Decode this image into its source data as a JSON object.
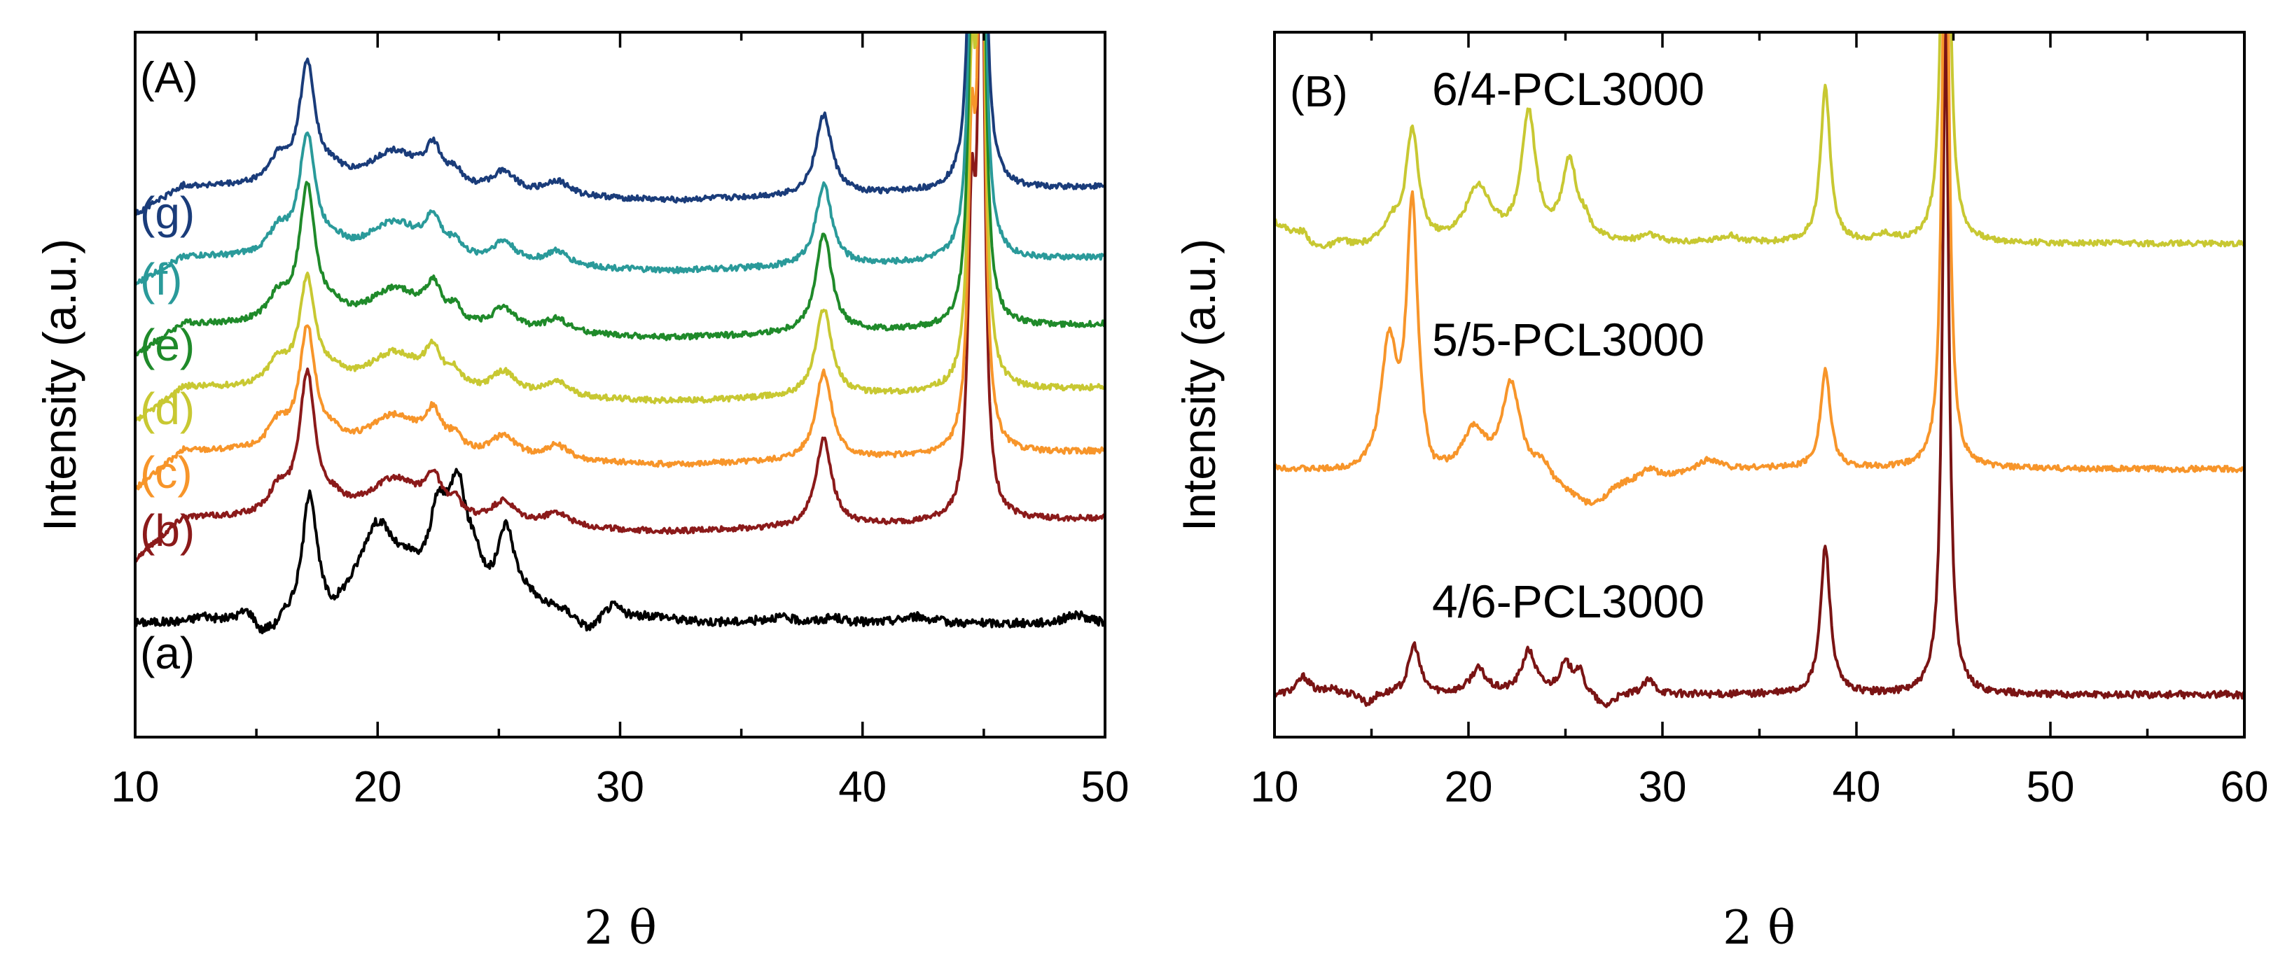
{
  "figure": {
    "panels": [
      {
        "label": "(A)",
        "xlabel_main": "2",
        "xlabel_symbol": "θ",
        "ylabel": "Intensity (a.u.)"
      },
      {
        "label": "(B)",
        "xlabel_main": "2",
        "xlabel_symbol": "θ",
        "ylabel": "Intensity (a.u.)"
      }
    ]
  },
  "chart_data": [
    {
      "type": "line",
      "title": "(A)",
      "xlabel": "2 θ",
      "ylabel": "Intensity (a.u.)",
      "xlim": [
        10,
        50
      ],
      "ylim": [
        0,
        100
      ],
      "xticks": [
        10,
        20,
        30,
        40,
        50
      ],
      "yticks_shown": false,
      "series": [
        {
          "name": "(a)",
          "color": "#000000",
          "baseline": 16,
          "noise": 0.6,
          "slope": [
            [
              10,
              0
            ],
            [
              30,
              0
            ],
            [
              50,
              0
            ]
          ],
          "peaks": [
            [
              12.8,
              0.8,
              0.4
            ],
            [
              14.6,
              1.5,
              0.4
            ],
            [
              15.2,
              -2.0,
              0.3
            ],
            [
              15.7,
              -1.5,
              0.3
            ],
            [
              17.2,
              17.5,
              0.35
            ],
            [
              18.1,
              -1.5,
              0.4
            ],
            [
              20.0,
              13,
              1.0
            ],
            [
              21.3,
              3,
              0.6
            ],
            [
              22.5,
              12,
              0.5
            ],
            [
              23.3,
              15.5,
              0.45
            ],
            [
              24.0,
              5,
              0.4
            ],
            [
              25.3,
              11.5,
              0.45
            ],
            [
              26.2,
              2,
              0.6
            ],
            [
              27.5,
              1.2,
              0.8
            ],
            [
              28.7,
              -2,
              0.5
            ],
            [
              29.7,
              2.3,
              0.5
            ],
            [
              31.5,
              0.8,
              0.8
            ],
            [
              36.5,
              0.8,
              0.8
            ],
            [
              38.8,
              0.7,
              0.5
            ],
            [
              42.2,
              1,
              0.8
            ],
            [
              48.8,
              1.3,
              0.6
            ]
          ]
        },
        {
          "name": "(b)",
          "color": "#8b1a1a",
          "baseline": 31,
          "noise": 0.4,
          "slope": [
            [
              10,
              -6
            ],
            [
              12,
              0
            ],
            [
              32,
              -2
            ],
            [
              50,
              0
            ]
          ],
          "peaks": [
            [
              15.9,
              3.5,
              0.5
            ],
            [
              17.1,
              20,
              0.4
            ],
            [
              18.2,
              1.5,
              0.5
            ],
            [
              20.7,
              6,
              1.4
            ],
            [
              22.3,
              5,
              0.4
            ],
            [
              23.2,
              2,
              0.3
            ],
            [
              25.2,
              3,
              0.6
            ],
            [
              27.4,
              2,
              0.6
            ],
            [
              38.4,
              12.5,
              0.4
            ],
            [
              44.5,
              40,
              0.18
            ],
            [
              44.9,
              95,
              0.15
            ]
          ]
        },
        {
          "name": "(c)",
          "color": "#f7952a",
          "baseline": 40.5,
          "noise": 0.4,
          "slope": [
            [
              10,
              -5.5
            ],
            [
              12,
              0
            ],
            [
              32,
              -2
            ],
            [
              50,
              0
            ]
          ],
          "peaks": [
            [
              15.9,
              3.5,
              0.5
            ],
            [
              17.1,
              17,
              0.4
            ],
            [
              18.2,
              1.5,
              0.5
            ],
            [
              20.7,
              5.5,
              1.4
            ],
            [
              22.3,
              4.8,
              0.4
            ],
            [
              23.2,
              2,
              0.3
            ],
            [
              25.2,
              3,
              0.6
            ],
            [
              27.4,
              2,
              0.6
            ],
            [
              38.4,
              12.5,
              0.4
            ],
            [
              44.5,
              40,
              0.18
            ],
            [
              44.9,
              95,
              0.15
            ]
          ]
        },
        {
          "name": "(d)",
          "color": "#c8c832",
          "baseline": 49.5,
          "noise": 0.4,
          "slope": [
            [
              10,
              -5
            ],
            [
              12,
              0
            ],
            [
              32,
              -2
            ],
            [
              50,
              0
            ]
          ],
          "peaks": [
            [
              15.9,
              3.5,
              0.5
            ],
            [
              17.1,
              15,
              0.4
            ],
            [
              18.2,
              1.5,
              0.5
            ],
            [
              20.7,
              5.5,
              1.4
            ],
            [
              22.3,
              4.8,
              0.4
            ],
            [
              23.2,
              2,
              0.3
            ],
            [
              25.2,
              3,
              0.6
            ],
            [
              27.4,
              2,
              0.6
            ],
            [
              38.4,
              12.5,
              0.4
            ],
            [
              44.5,
              40,
              0.18
            ],
            [
              44.9,
              95,
              0.15
            ]
          ]
        },
        {
          "name": "(e)",
          "color": "#1f8a2a",
          "baseline": 58.5,
          "noise": 0.4,
          "slope": [
            [
              10,
              -4.5
            ],
            [
              12,
              0
            ],
            [
              32,
              -2
            ],
            [
              50,
              0
            ]
          ],
          "peaks": [
            [
              15.9,
              3.5,
              0.5
            ],
            [
              17.1,
              19,
              0.4
            ],
            [
              18.2,
              1.5,
              0.5
            ],
            [
              20.7,
              5.5,
              1.4
            ],
            [
              22.3,
              4.8,
              0.4
            ],
            [
              23.2,
              2,
              0.3
            ],
            [
              25.2,
              3,
              0.6
            ],
            [
              27.4,
              2,
              0.6
            ],
            [
              38.4,
              14,
              0.4
            ],
            [
              44.5,
              40,
              0.18
            ],
            [
              44.9,
              95,
              0.15
            ]
          ]
        },
        {
          "name": "(f)",
          "color": "#2a9a9a",
          "baseline": 68,
          "noise": 0.4,
          "slope": [
            [
              10,
              -4
            ],
            [
              12,
              0
            ],
            [
              32,
              -2
            ],
            [
              50,
              0
            ]
          ],
          "peaks": [
            [
              15.9,
              3.5,
              0.5
            ],
            [
              17.1,
              17,
              0.4
            ],
            [
              18.2,
              1.5,
              0.5
            ],
            [
              20.7,
              5.5,
              1.4
            ],
            [
              22.3,
              4.8,
              0.4
            ],
            [
              23.2,
              2,
              0.3
            ],
            [
              25.2,
              3,
              0.6
            ],
            [
              27.4,
              2,
              0.6
            ],
            [
              38.4,
              11.5,
              0.4
            ],
            [
              44.5,
              40,
              0.18
            ],
            [
              44.9,
              95,
              0.15
            ]
          ]
        },
        {
          "name": "(g)",
          "color": "#1a3c7a",
          "baseline": 78,
          "noise": 0.4,
          "slope": [
            [
              10,
              -4
            ],
            [
              12,
              0
            ],
            [
              32,
              -2
            ],
            [
              50,
              0
            ]
          ],
          "peaks": [
            [
              15.9,
              3.5,
              0.5
            ],
            [
              17.1,
              17,
              0.4
            ],
            [
              18.2,
              1.5,
              0.5
            ],
            [
              20.7,
              5.5,
              1.4
            ],
            [
              22.3,
              4.8,
              0.4
            ],
            [
              23.2,
              2,
              0.3
            ],
            [
              25.2,
              3,
              0.6
            ],
            [
              27.4,
              2,
              0.6
            ],
            [
              38.4,
              11.5,
              0.4
            ],
            [
              44.5,
              40,
              0.18
            ],
            [
              44.9,
              95,
              0.15
            ]
          ]
        }
      ]
    },
    {
      "type": "line",
      "title": "(B)",
      "xlabel": "2 θ",
      "ylabel": "Intensity (a.u.)",
      "xlim": [
        10,
        60
      ],
      "ylim": [
        0,
        100
      ],
      "xticks": [
        10,
        20,
        30,
        40,
        50,
        60
      ],
      "yticks_shown": false,
      "series": [
        {
          "name": "4/6-PCL3000",
          "color": "#7a1414",
          "baseline": 6,
          "noise": 0.5,
          "slope": [
            [
              10,
              0
            ],
            [
              60,
              0
            ]
          ],
          "peaks": [
            [
              11.5,
              2.5,
              0.4
            ],
            [
              13.0,
              0.8,
              0.4
            ],
            [
              14.8,
              -1.5,
              0.3
            ],
            [
              17.2,
              7,
              0.35
            ],
            [
              20.5,
              3.5,
              0.5
            ],
            [
              23.1,
              6,
              0.45
            ],
            [
              25.0,
              4,
              0.4
            ],
            [
              25.7,
              3,
              0.3
            ],
            [
              27.0,
              -2,
              0.5
            ],
            [
              29.3,
              2,
              0.4
            ],
            [
              38.4,
              21,
              0.3
            ],
            [
              44.6,
              95,
              0.2
            ]
          ]
        },
        {
          "name": "5/5-PCL3000",
          "color": "#f7952a",
          "baseline": 38,
          "noise": 0.4,
          "slope": [
            [
              10,
              0
            ],
            [
              26,
              -4
            ],
            [
              28,
              -2
            ],
            [
              35,
              0
            ],
            [
              60,
              0
            ]
          ],
          "peaks": [
            [
              15.9,
              18,
              0.5
            ],
            [
              17.1,
              38,
              0.35
            ],
            [
              18.1,
              -1.5,
              0.4
            ],
            [
              20.3,
              7,
              0.8
            ],
            [
              22.2,
              14,
              0.6
            ],
            [
              23.8,
              3,
              0.6
            ],
            [
              26.5,
              -2,
              0.8
            ],
            [
              29.3,
              1.5,
              0.5
            ],
            [
              32.4,
              2,
              0.8
            ],
            [
              38.4,
              14,
              0.3
            ],
            [
              44.6,
              95,
              0.2
            ]
          ]
        },
        {
          "name": "6/4-PCL3000",
          "color": "#c8c832",
          "baseline": 70,
          "noise": 0.4,
          "slope": [
            [
              10,
              3
            ],
            [
              12,
              -1
            ],
            [
              25,
              0
            ],
            [
              60,
              0
            ]
          ],
          "peaks": [
            [
              11.5,
              1.5,
              0.4
            ],
            [
              13.5,
              1,
              0.4
            ],
            [
              16.0,
              3,
              0.5
            ],
            [
              17.1,
              16,
              0.4
            ],
            [
              20.5,
              8,
              0.8
            ],
            [
              23.1,
              18,
              0.45
            ],
            [
              25.2,
              11,
              0.45
            ],
            [
              26.0,
              2,
              0.4
            ],
            [
              29.3,
              1,
              0.5
            ],
            [
              33.4,
              1,
              0.6
            ],
            [
              38.4,
              22,
              0.3
            ],
            [
              41.5,
              1,
              0.6
            ],
            [
              44.6,
              95,
              0.2
            ]
          ]
        }
      ]
    }
  ]
}
